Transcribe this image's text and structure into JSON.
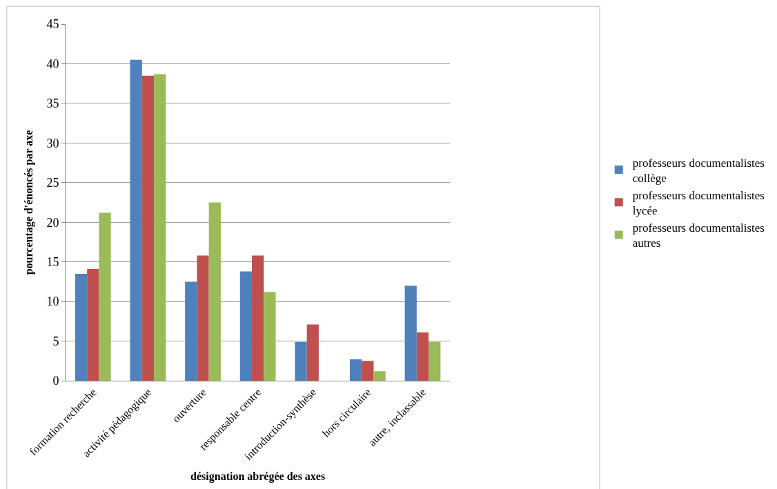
{
  "chart_data": {
    "type": "bar",
    "xlabel": "désignation abrégée des axes",
    "ylabel": "pourcentage d'énoncés par axe",
    "categories": [
      "formation recherche",
      "activité pédagogique",
      "ouverture",
      "responsable centre",
      "introduction-synthèse",
      "hors circulaire",
      "autre, inclassable"
    ],
    "series": [
      {
        "name": "professeurs documentalistes collège",
        "color": "#4f81bd",
        "values": [
          13.5,
          40.5,
          12.5,
          13.8,
          4.9,
          2.7,
          12.0
        ]
      },
      {
        "name": "professeurs documentalistes lycée",
        "color": "#c0504d",
        "values": [
          14.1,
          38.5,
          15.8,
          15.8,
          7.1,
          2.5,
          6.1
        ]
      },
      {
        "name": "professeurs documentalistes autres",
        "color": "#9bbb59",
        "values": [
          21.2,
          38.7,
          22.5,
          11.2,
          0,
          1.2,
          4.9
        ]
      }
    ],
    "ylim": [
      0,
      45
    ],
    "yticks": [
      0,
      5,
      10,
      15,
      20,
      25,
      30,
      35,
      40,
      45
    ],
    "grid": "y",
    "legend": "right"
  }
}
